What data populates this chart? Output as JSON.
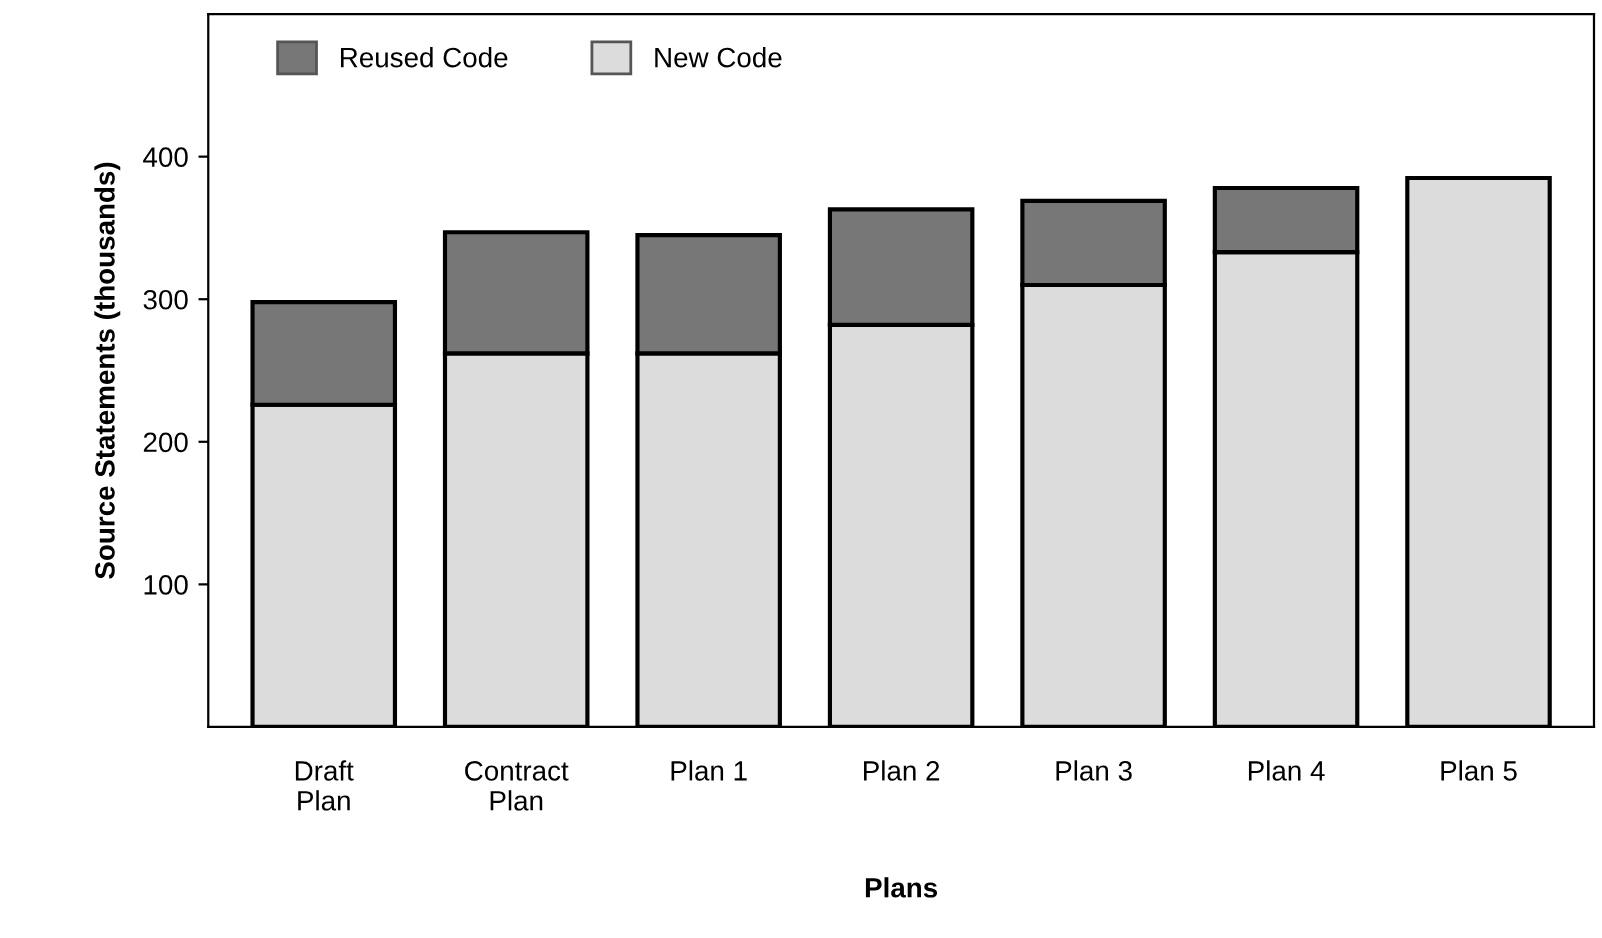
{
  "chart_data": {
    "type": "bar",
    "stacked": true,
    "xlabel": "Plans",
    "ylabel": "Source Statements (thousands)",
    "categories": [
      "Draft\nPlan",
      "Contract\nPlan",
      "Plan 1",
      "Plan 2",
      "Plan 3",
      "Plan 4",
      "Plan 5"
    ],
    "series": [
      {
        "name": "New Code",
        "color": "#dcdcdc",
        "values": [
          226,
          262,
          262,
          282,
          310,
          333,
          385
        ]
      },
      {
        "name": "Reused Code",
        "color": "#777777",
        "values": [
          72,
          85,
          83,
          81,
          59,
          45,
          null
        ]
      }
    ],
    "ylim": [
      0,
      500
    ],
    "yticks": [
      100,
      200,
      300,
      400
    ],
    "grid": false,
    "legend": "top left"
  }
}
